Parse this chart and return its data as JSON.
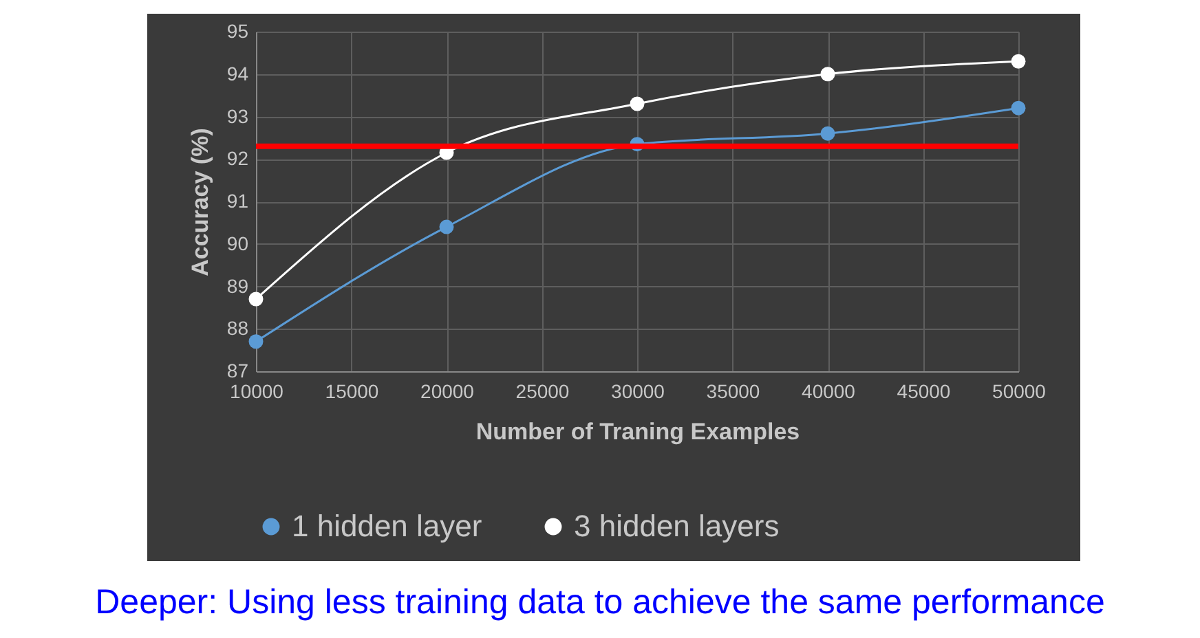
{
  "chart_data": {
    "type": "line",
    "xlabel": "Number of Traning Examples",
    "ylabel": "Accuracy (%)",
    "x": [
      10000,
      20000,
      30000,
      40000,
      50000
    ],
    "series": [
      {
        "name": "1 hidden layer",
        "color": "#5b9bd5",
        "values": [
          87.7,
          90.4,
          92.35,
          92.6,
          93.2
        ]
      },
      {
        "name": "3 hidden layers",
        "color": "#ffffff",
        "values": [
          88.7,
          92.15,
          93.3,
          94.0,
          94.3
        ]
      }
    ],
    "xlim": [
      10000,
      50000
    ],
    "xticks": [
      10000,
      15000,
      20000,
      25000,
      30000,
      35000,
      40000,
      45000,
      50000
    ],
    "ylim": [
      87,
      95
    ],
    "yticks": [
      87,
      88,
      89,
      90,
      91,
      92,
      93,
      94,
      95
    ],
    "ref_lines": [
      {
        "axis": "y",
        "value": 92.3,
        "color": "#ff0000"
      }
    ],
    "grid": true,
    "legend": "bottom",
    "marker": "circle",
    "annotations": [
      "Deeper: Using less training data to achieve the same performance"
    ]
  }
}
